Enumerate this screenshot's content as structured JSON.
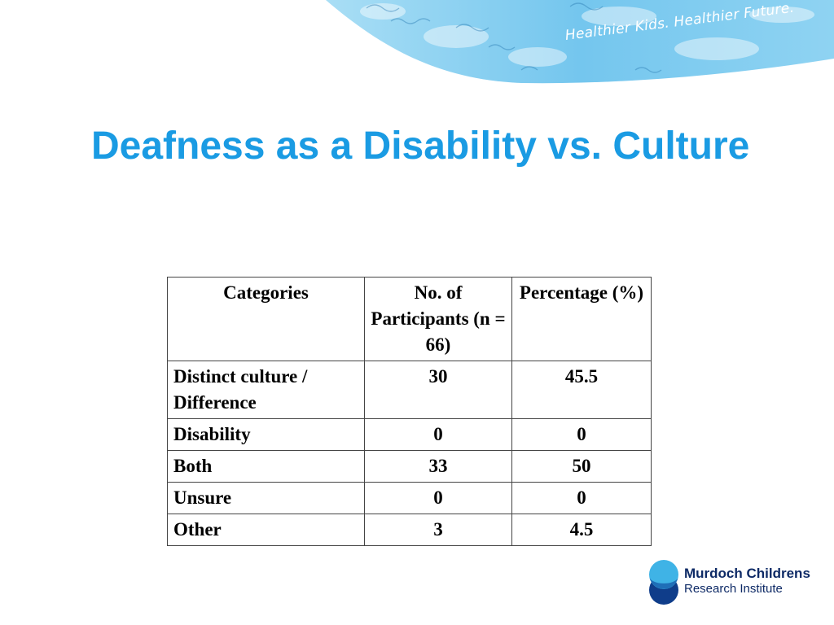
{
  "header": {
    "tagline": "Healthier Kids. Healthier Future."
  },
  "slide": {
    "title": "Deafness as a Disability vs. Culture"
  },
  "table": {
    "headers": [
      "Categories",
      "No. of Participants (n = 66)",
      "Percentage (%)"
    ],
    "rows": [
      [
        "Distinct culture / Difference",
        "30",
        "45.5"
      ],
      [
        "Disability",
        "0",
        "0"
      ],
      [
        "Both",
        "33",
        "50"
      ],
      [
        "Unsure",
        "0",
        "0"
      ],
      [
        "Other",
        "3",
        "4.5"
      ]
    ]
  },
  "logo": {
    "line1": "Murdoch Childrens",
    "line2": "Research Institute",
    "colors": {
      "top_circle": "#3fb3e6",
      "bottom_circle": "#0f3d8a",
      "text": "#0e2a66"
    }
  },
  "theme": {
    "title_color": "#1a9be3",
    "banner_color": "#7ccbee"
  }
}
